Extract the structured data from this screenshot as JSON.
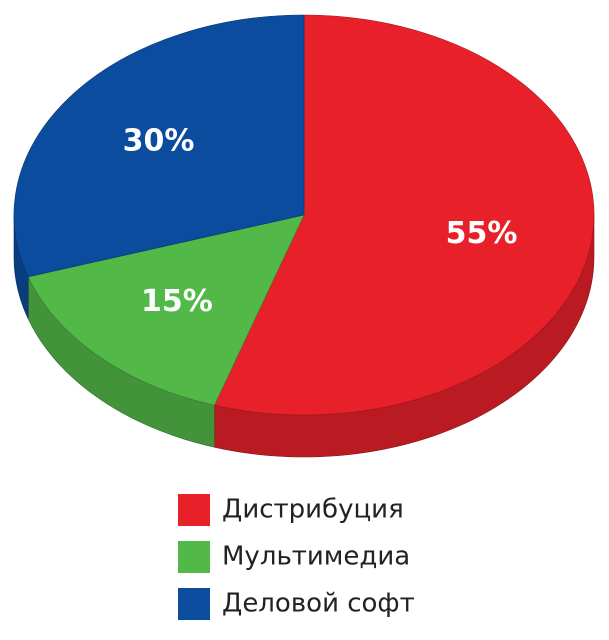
{
  "chart_data": {
    "type": "pie",
    "categories": [
      "Дистрибуция",
      "Мультимедиа",
      "Деловой софт"
    ],
    "values": [
      55,
      15,
      30
    ],
    "value_labels": [
      "55%",
      "15%",
      "30%"
    ],
    "colors": [
      "#e8202a",
      "#52b848",
      "#0b4c9e"
    ]
  }
}
